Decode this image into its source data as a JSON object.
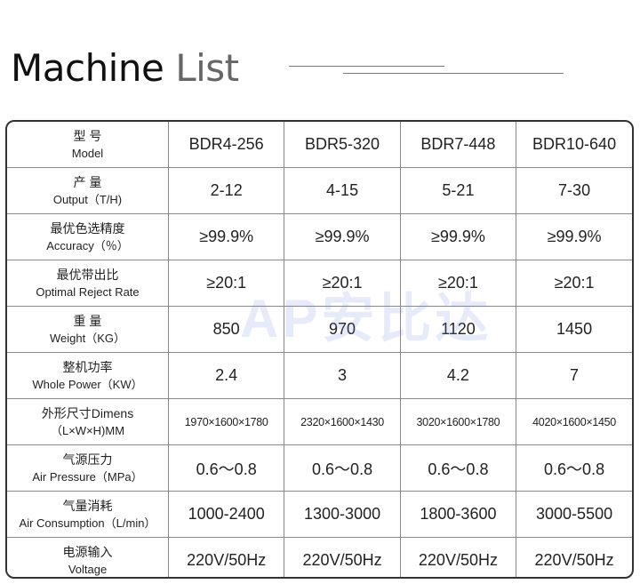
{
  "title": {
    "part1": "Machine",
    "part2": "List"
  },
  "watermark": "安比达",
  "table": {
    "rows": [
      {
        "zh": "型 号",
        "en": "Model",
        "values": [
          "BDR4-256",
          "BDR5-320",
          "BDR7-448",
          "BDR10-640"
        ]
      },
      {
        "zh": "产 量",
        "en": "Output（T/H)",
        "values": [
          "2-12",
          "4-15",
          "5-21",
          "7-30"
        ]
      },
      {
        "zh": "最优色选精度",
        "en": "Accuracy（％）",
        "values": [
          "≥99.9%",
          "≥99.9%",
          "≥99.9%",
          "≥99.9%"
        ]
      },
      {
        "zh": "最优带出比",
        "en": "Optimal Reject Rate",
        "values": [
          "≥20:1",
          "≥20:1",
          "≥20:1",
          "≥20:1"
        ]
      },
      {
        "zh": "重 量",
        "en": "Weight（KG）",
        "values": [
          "850",
          "970",
          "1120",
          "1450"
        ]
      },
      {
        "zh": "整机功率",
        "en": "Whole Power（KW）",
        "values": [
          "2.4",
          "3",
          "4.2",
          "7"
        ]
      },
      {
        "zh": "外形尺寸Dimens",
        "en": "（L×W×H)MM",
        "values": [
          "1970×1600×1780",
          "2320×1600×1430",
          "3020×1600×1780",
          "4020×1600×1450"
        ]
      },
      {
        "zh": "气源压力",
        "en": "Air Pressure（MPa）",
        "values": [
          "0.6～0.8",
          "0.6～0.8",
          "0.6～0.8",
          "0.6～0.8"
        ]
      },
      {
        "zh": "气量消耗",
        "en": "Air Consumption（L/min）",
        "values": [
          "1000-2400",
          "1300-3000",
          "1800-3600",
          "3000-5500"
        ]
      },
      {
        "zh": "电源输入",
        "en": "Voltage",
        "values": [
          "220V/50Hz",
          "220V/50Hz",
          "220V/50Hz",
          "220V/50Hz"
        ]
      }
    ]
  }
}
